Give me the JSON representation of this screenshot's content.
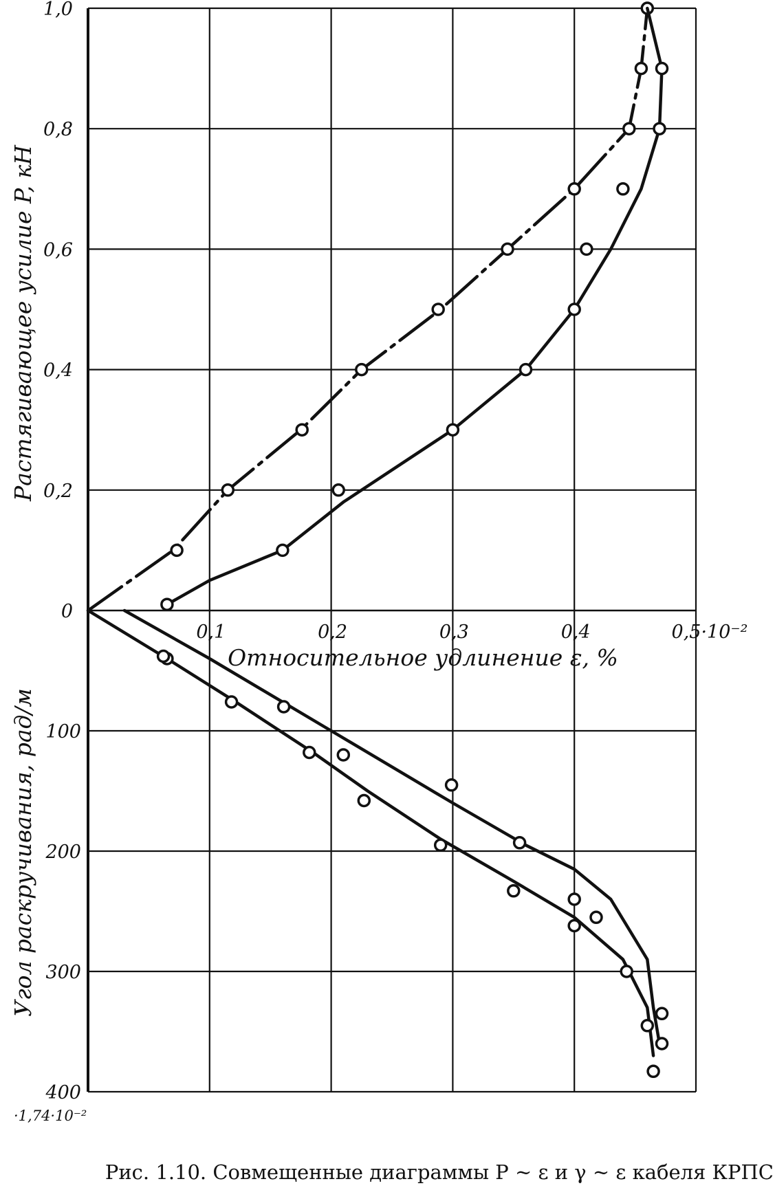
{
  "chart_data": [
    {
      "type": "line",
      "panel": "upper",
      "xlabel": "Относительное удлинение  ε, %",
      "ylabel": "Растягивающее  усилие  P, кН",
      "xlim": [
        0,
        0.5
      ],
      "ylim": [
        0,
        1.0
      ],
      "x_multiplier_label": "0,5·10⁻²",
      "x_ticks": [
        0.1,
        0.2,
        0.3,
        0.4
      ],
      "x_tick_labels": [
        "0,1",
        "0,2",
        "0,3",
        "0,4"
      ],
      "y_ticks": [
        0,
        0.2,
        0.4,
        0.6,
        0.8,
        1.0
      ],
      "y_tick_labels": [
        "0",
        "0,2",
        "0,4",
        "0,6",
        "0,8",
        "1,0"
      ],
      "grid": true,
      "series": [
        {
          "style": "dash-dot",
          "points": [
            [
              0.0,
              0.0
            ],
            [
              0.07,
              0.1
            ],
            [
              0.115,
              0.2
            ],
            [
              0.175,
              0.3
            ],
            [
              0.225,
              0.4
            ],
            [
              0.29,
              0.5
            ],
            [
              0.345,
              0.6
            ],
            [
              0.4,
              0.7
            ],
            [
              0.445,
              0.8
            ],
            [
              0.455,
              0.9
            ],
            [
              0.46,
              1.0
            ]
          ],
          "markers": [
            [
              0.073,
              0.1
            ],
            [
              0.115,
              0.2
            ],
            [
              0.176,
              0.3
            ],
            [
              0.225,
              0.4
            ],
            [
              0.288,
              0.5
            ],
            [
              0.345,
              0.6
            ],
            [
              0.4,
              0.7
            ],
            [
              0.445,
              0.8
            ],
            [
              0.455,
              0.9
            ],
            [
              0.46,
              1.0
            ]
          ]
        },
        {
          "style": "solid",
          "points": [
            [
              0.065,
              0.01
            ],
            [
              0.1,
              0.05
            ],
            [
              0.16,
              0.1
            ],
            [
              0.21,
              0.18
            ],
            [
              0.3,
              0.3
            ],
            [
              0.36,
              0.4
            ],
            [
              0.4,
              0.5
            ],
            [
              0.43,
              0.6
            ],
            [
              0.455,
              0.7
            ],
            [
              0.47,
              0.8
            ],
            [
              0.472,
              0.9
            ],
            [
              0.46,
              1.0
            ]
          ],
          "markers": [
            [
              0.065,
              0.01
            ],
            [
              0.16,
              0.1
            ],
            [
              0.206,
              0.2
            ],
            [
              0.3,
              0.3
            ],
            [
              0.36,
              0.4
            ],
            [
              0.4,
              0.5
            ],
            [
              0.41,
              0.6
            ],
            [
              0.44,
              0.7
            ],
            [
              0.47,
              0.8
            ],
            [
              0.472,
              0.9
            ]
          ]
        }
      ]
    },
    {
      "type": "line",
      "panel": "lower",
      "xlabel": "Относительное удлинение  ε, %",
      "ylabel": "Угол раскручивания, рад/м",
      "xlim": [
        0,
        0.5
      ],
      "ylim": [
        0,
        400
      ],
      "y_inverted": true,
      "y_multiplier_label": "·1,74·10⁻²",
      "y_ticks": [
        100,
        200,
        300,
        400
      ],
      "y_tick_labels": [
        "100",
        "200",
        "300",
        "400"
      ],
      "grid": true,
      "series": [
        {
          "style": "solid",
          "points": [
            [
              0.0,
              0.0
            ],
            [
              0.065,
              40
            ],
            [
              0.12,
              75
            ],
            [
              0.185,
              118
            ],
            [
              0.23,
              150
            ],
            [
              0.29,
              190
            ],
            [
              0.35,
              225
            ],
            [
              0.4,
              255
            ],
            [
              0.44,
              290
            ],
            [
              0.46,
              330
            ],
            [
              0.465,
              370
            ]
          ],
          "markers": [
            [
              0.065,
              40
            ],
            [
              0.118,
              76
            ],
            [
              0.182,
              118
            ],
            [
              0.227,
              158
            ],
            [
              0.29,
              195
            ],
            [
              0.35,
              233
            ],
            [
              0.4,
              262
            ],
            [
              0.46,
              345
            ],
            [
              0.465,
              383
            ]
          ]
        },
        {
          "style": "solid",
          "points": [
            [
              0.03,
              0.0
            ],
            [
              0.1,
              40
            ],
            [
              0.2,
              100
            ],
            [
              0.3,
              160
            ],
            [
              0.36,
              195
            ],
            [
              0.4,
              215
            ],
            [
              0.43,
              240
            ],
            [
              0.46,
              290
            ],
            [
              0.465,
              330
            ],
            [
              0.47,
              360
            ]
          ],
          "markers": [
            [
              0.062,
              38
            ],
            [
              0.161,
              80
            ],
            [
              0.21,
              120
            ],
            [
              0.299,
              145
            ],
            [
              0.355,
              193
            ],
            [
              0.4,
              240
            ],
            [
              0.418,
              255
            ],
            [
              0.443,
              300
            ],
            [
              0.472,
              335
            ],
            [
              0.472,
              360
            ]
          ]
        }
      ]
    }
  ],
  "figure": {
    "caption": "Рис. 1.10. Совмещенные диаграммы P ~ ε и γ ~ ε кабеля КРПС"
  }
}
